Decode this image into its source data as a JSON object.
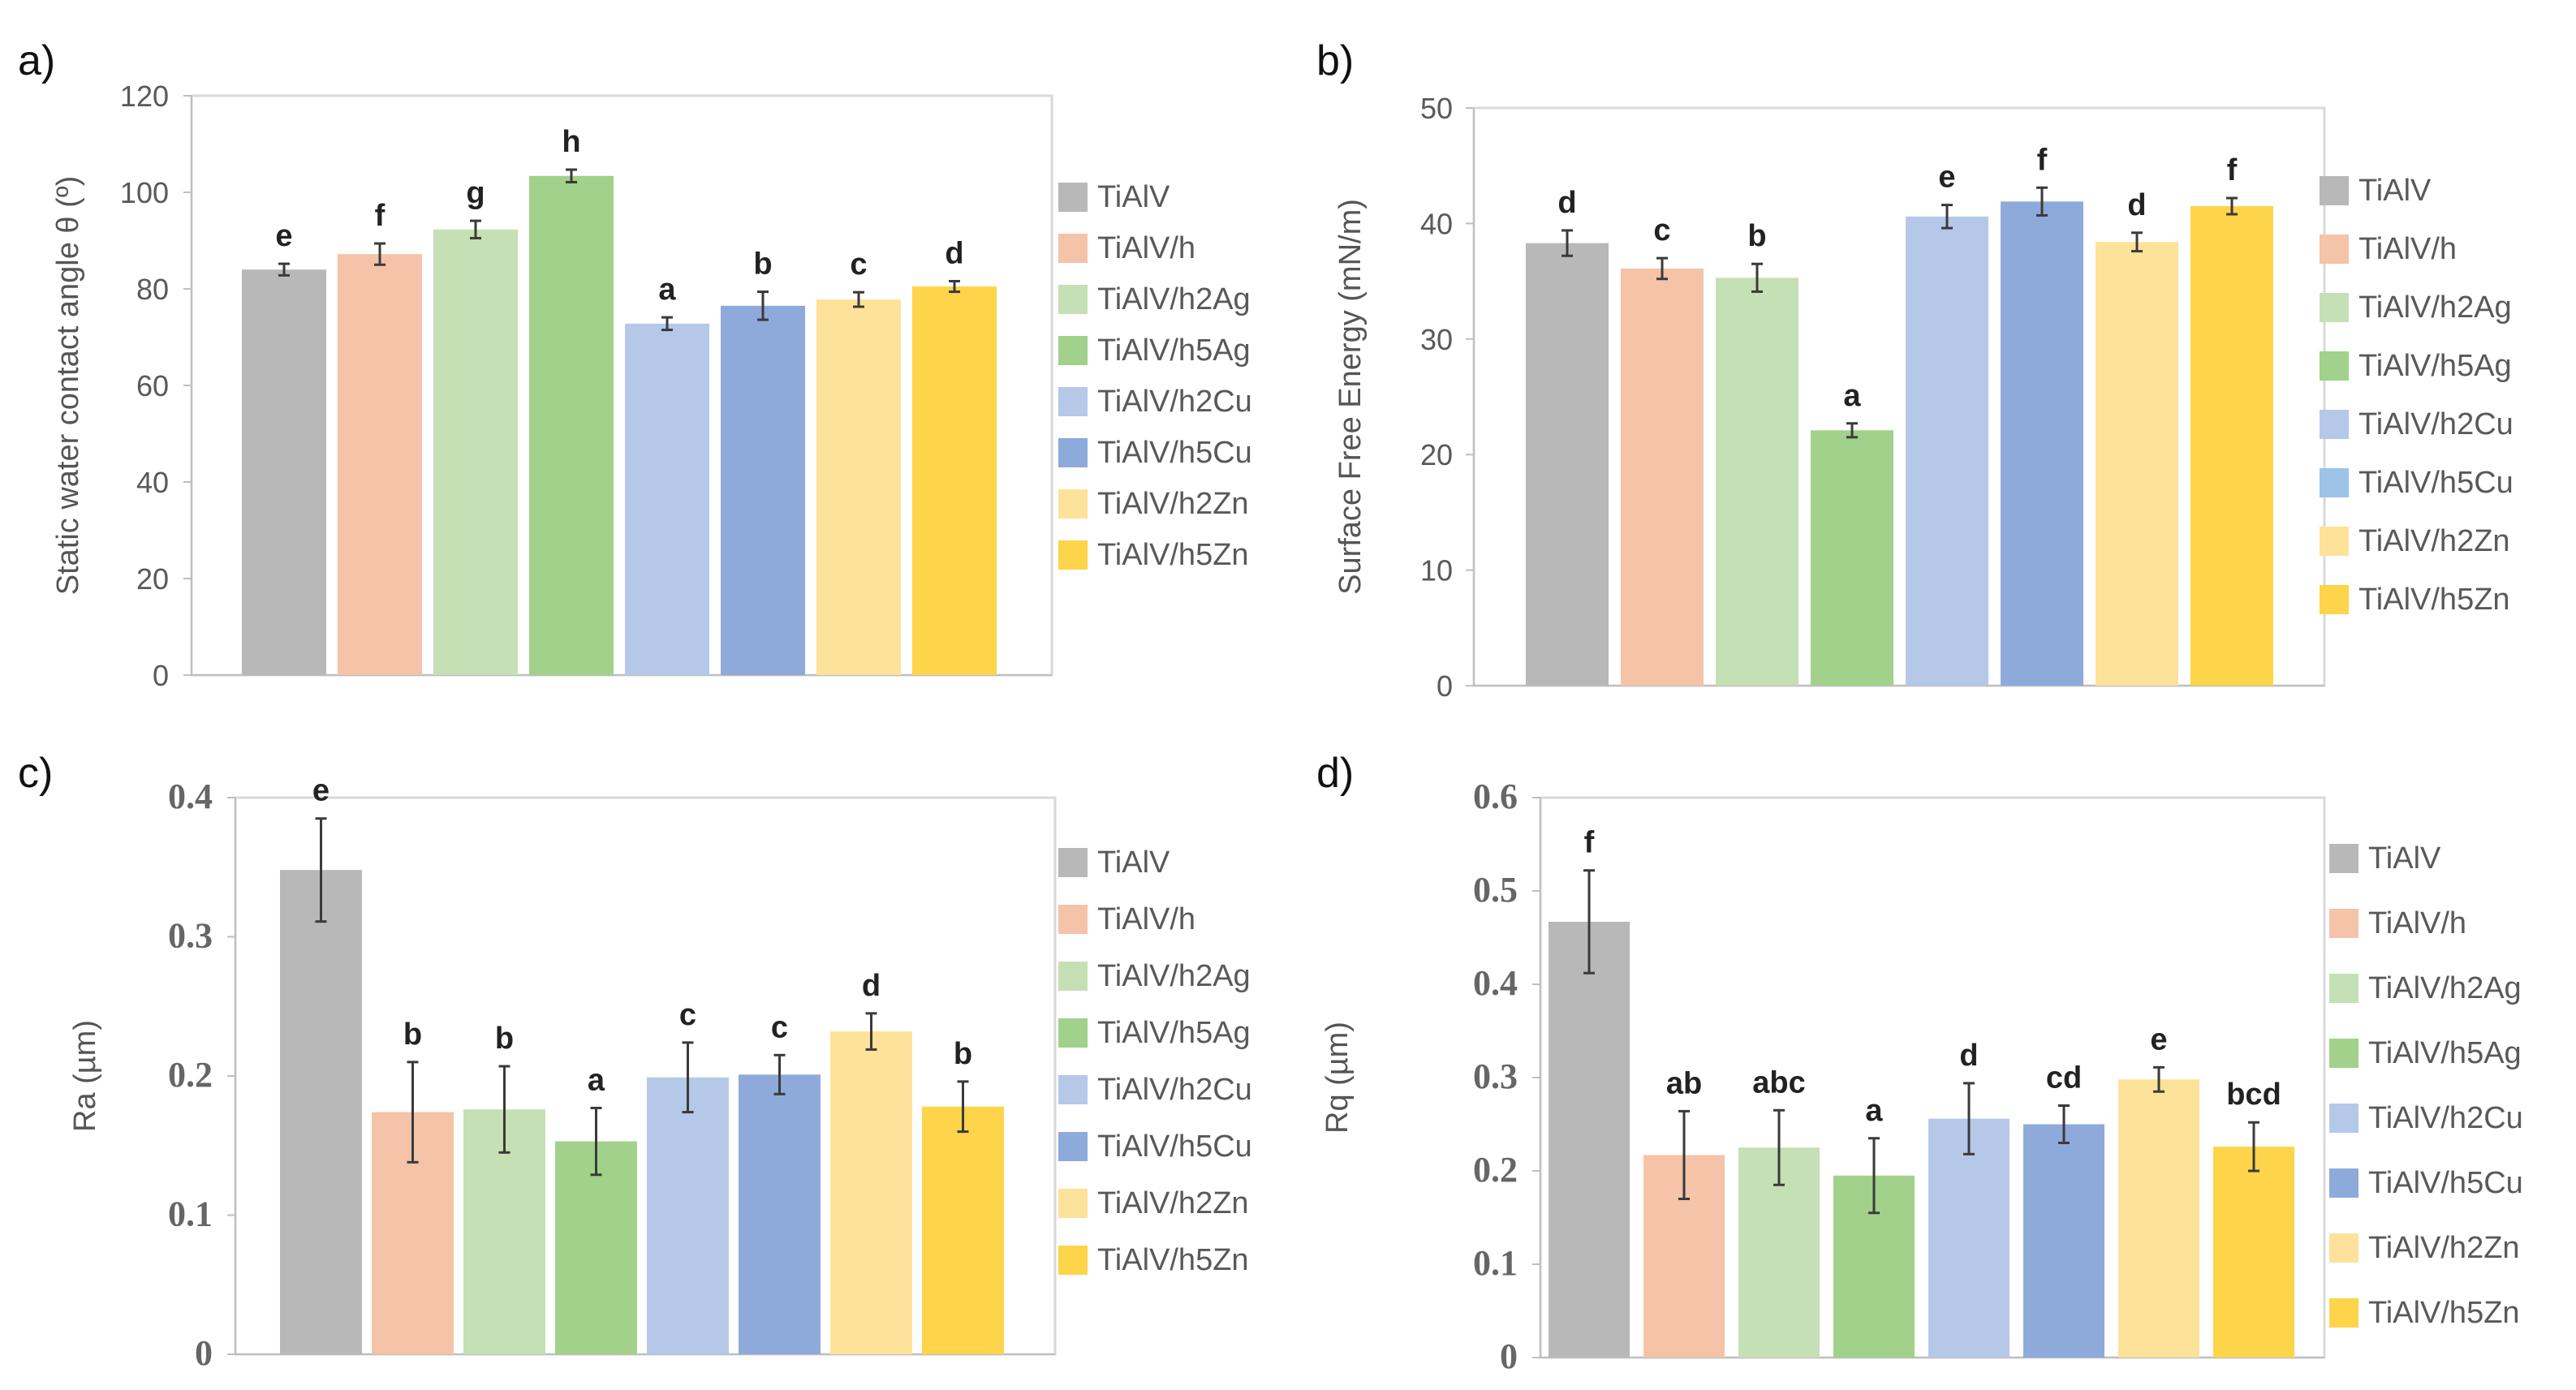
{
  "figure": {
    "legend_entries": [
      "TiAlV",
      "TiAlV/h",
      "TiAlV/h2Ag",
      "TiAlV/h5Ag",
      "TiAlV/h2Cu",
      "TiAlV/h5Cu",
      "TiAlV/h2Zn",
      "TiAlV/h5Zn"
    ],
    "colors": {
      "TiAlV": "#b8b8b8",
      "TiAlV/h": "#f4c3a8",
      "TiAlV/h2Ag": "#c5e0b4",
      "TiAlV/h5Ag": "#a1d18a",
      "TiAlV/h2Cu": "#b5c8e8",
      "TiAlV/h5Cu": "#8eaadb",
      "TiAlV/h2Zn": "#fde29a",
      "TiAlV/h5Zn": "#fed44a"
    }
  },
  "chart_data": [
    {
      "panel": "a)",
      "type": "bar",
      "title": "",
      "xlabel": "",
      "ylabel": "Static water contact angle θ (º)",
      "ylim": [
        0,
        120
      ],
      "yticks": [
        0,
        20,
        40,
        60,
        80,
        100,
        120
      ],
      "categories": [
        "TiAlV",
        "TiAlV/h",
        "TiAlV/h2Ag",
        "TiAlV/h5Ag",
        "TiAlV/h2Cu",
        "TiAlV/h5Cu",
        "TiAlV/h2Zn",
        "TiAlV/h5Zn"
      ],
      "values": [
        84,
        87.2,
        92.3,
        103.4,
        72.8,
        76.5,
        77.8,
        80.5
      ],
      "errors": [
        1.2,
        2.2,
        1.8,
        1.3,
        1.3,
        2.9,
        1.5,
        1.1
      ],
      "labels": [
        "e",
        "f",
        "g",
        "h",
        "a",
        "b",
        "c",
        "d"
      ],
      "legend_colors": [
        "#b8b8b8",
        "#f4c3a8",
        "#c5e0b4",
        "#a1d18a",
        "#b5c8e8",
        "#8eaadb",
        "#fde29a",
        "#fed44a"
      ],
      "legend_labels": [
        "TiAlV",
        "TiAlV/h",
        "TiAlV/h2Ag",
        "TiAlV/h5Ag",
        "TiAlV/h2Cu",
        "TiAlV/h5Cu",
        "TiAlV/h2Zn",
        "TiAlV/h5Zn"
      ]
    },
    {
      "panel": "b)",
      "type": "bar",
      "title": "",
      "xlabel": "",
      "ylabel": "Surface Free Energy (mN/m)",
      "ylim": [
        0,
        50
      ],
      "yticks": [
        0,
        10,
        20,
        30,
        40,
        50
      ],
      "categories": [
        "TiAlV",
        "TiAlV/h",
        "TiAlV/h2Ag",
        "TiAlV/h5Ag",
        "TiAlV/h2Cu",
        "TiAlV/h5Cu",
        "TiAlV/h2Zn",
        "TiAlV/h5Zn"
      ],
      "values": [
        38.3,
        36.1,
        35.3,
        22.1,
        40.6,
        41.9,
        38.4,
        41.5
      ],
      "errors": [
        1.1,
        0.9,
        1.2,
        0.6,
        1.0,
        1.2,
        0.8,
        0.7
      ],
      "labels": [
        "d",
        "c",
        "b",
        "a",
        "e",
        "f",
        "d",
        "f"
      ],
      "legend_colors": [
        "#b8b8b8",
        "#f4c3a8",
        "#c5e0b4",
        "#a1d18a",
        "#b5c8e8",
        "#9dc3e6",
        "#fde29a",
        "#fed44a"
      ],
      "legend_labels": [
        "TiAlV",
        "TiAlV/h",
        "TiAlV/h2Ag",
        "TiAlV/h5Ag",
        "TiAlV/h2Cu",
        "TiAlV/h5Cu",
        "TiAlV/h2Zn",
        "TiAlV/h5Zn"
      ]
    },
    {
      "panel": "c)",
      "type": "bar",
      "title": "",
      "xlabel": "",
      "ylabel": "Ra (µm)",
      "ylim": [
        0,
        0.4
      ],
      "yticks": [
        0,
        0.1,
        0.2,
        0.3,
        0.4
      ],
      "yticklabels": [
        "0",
        "0.1",
        "0.2",
        "0.3",
        "0.4"
      ],
      "categories": [
        "TiAlV",
        "TiAlV/h",
        "TiAlV/h2Ag",
        "TiAlV/h5Ag",
        "TiAlV/h2Cu",
        "TiAlV/h5Cu",
        "TiAlV/h2Zn",
        "TiAlV/h5Zn"
      ],
      "values": [
        0.348,
        0.174,
        0.176,
        0.153,
        0.199,
        0.201,
        0.232,
        0.178
      ],
      "errors": [
        0.037,
        0.036,
        0.031,
        0.024,
        0.025,
        0.014,
        0.013,
        0.018
      ],
      "labels": [
        "e",
        "b",
        "b",
        "a",
        "c",
        "c",
        "d",
        "b"
      ],
      "legend_colors": [
        "#b8b8b8",
        "#f4c3a8",
        "#c5e0b4",
        "#a1d18a",
        "#b5c8e8",
        "#8eaadb",
        "#fde29a",
        "#fed44a"
      ],
      "legend_labels": [
        "TiAlV",
        "TiAlV/h",
        "TiAlV/h2Ag",
        "TiAlV/h5Ag",
        "TiAlV/h2Cu",
        "TiAlV/h5Cu",
        "TiAlV/h2Zn",
        "TiAlV/h5Zn"
      ]
    },
    {
      "panel": "d)",
      "type": "bar",
      "title": "",
      "xlabel": "",
      "ylabel": "Rq (µm)",
      "ylim": [
        0,
        0.6
      ],
      "yticks": [
        0,
        0.1,
        0.2,
        0.3,
        0.4,
        0.5,
        0.6
      ],
      "yticklabels": [
        "0",
        "0.1",
        "0.2",
        "0.3",
        "0.4",
        "0.5",
        "0.6"
      ],
      "categories": [
        "TiAlV",
        "TiAlV/h",
        "TiAlV/h2Ag",
        "TiAlV/h5Ag",
        "TiAlV/h2Cu",
        "TiAlV/h5Cu",
        "TiAlV/h2Zn",
        "TiAlV/h5Zn"
      ],
      "values": [
        0.467,
        0.217,
        0.225,
        0.195,
        0.256,
        0.25,
        0.298,
        0.226
      ],
      "errors": [
        0.055,
        0.047,
        0.04,
        0.04,
        0.038,
        0.02,
        0.013,
        0.026
      ],
      "labels": [
        "f",
        "ab",
        "abc",
        "a",
        "d",
        "cd",
        "e",
        "bcd"
      ],
      "legend_colors": [
        "#b8b8b8",
        "#f4c3a8",
        "#c5e0b4",
        "#a1d18a",
        "#b5c8e8",
        "#8eaadb",
        "#fde29a",
        "#fed44a"
      ],
      "legend_labels": [
        "TiAlV",
        "TiAlV/h",
        "TiAlV/h2Ag",
        "TiAlV/h5Ag",
        "TiAlV/h2Cu",
        "TiAlV/h5Cu",
        "TiAlV/h2Zn",
        "TiAlV/h5Zn"
      ]
    }
  ]
}
